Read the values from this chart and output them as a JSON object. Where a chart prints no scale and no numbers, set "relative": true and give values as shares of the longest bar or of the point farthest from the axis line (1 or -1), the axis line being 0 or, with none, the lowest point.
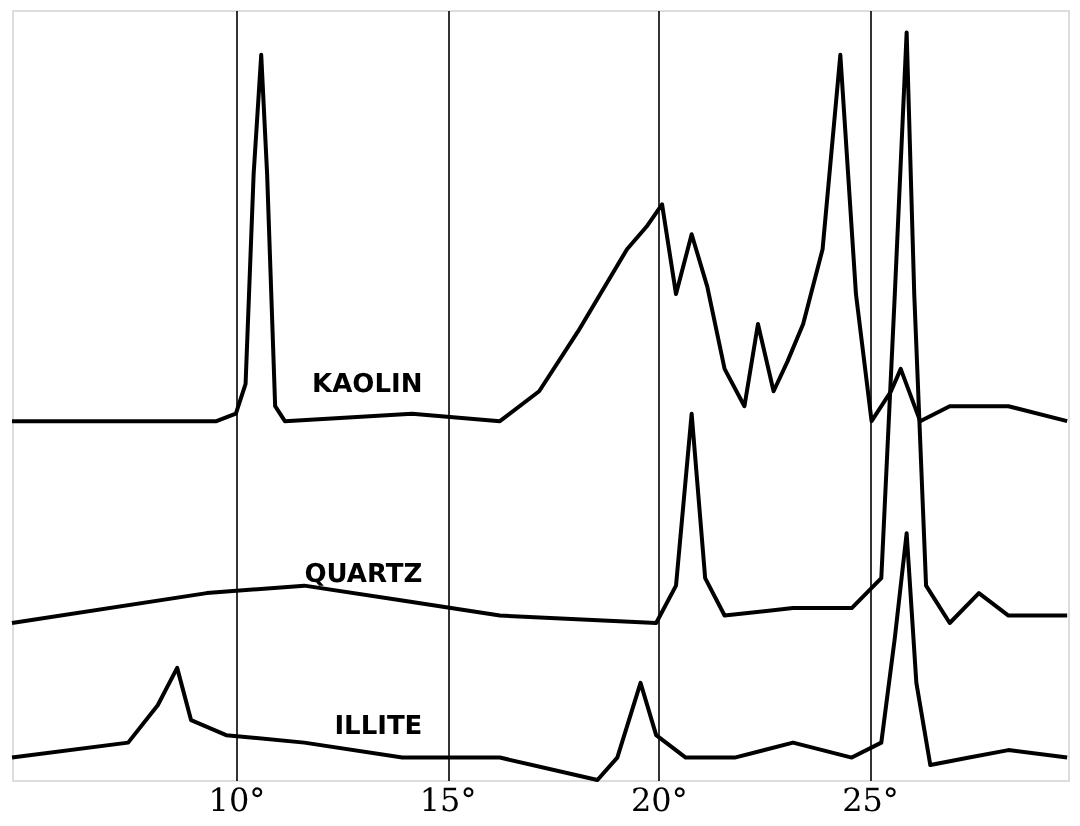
{
  "chart_data": {
    "type": "line",
    "relative": true,
    "xlim": [
      4.7,
      29.7
    ],
    "xticks": [
      {
        "value": 10,
        "label": "10°"
      },
      {
        "value": 15,
        "label": "15°"
      },
      {
        "value": 20,
        "label": "20°"
      },
      {
        "value": 25,
        "label": "25°"
      }
    ],
    "grid": "x",
    "legend": false,
    "marker": "none",
    "line_style": "solid",
    "series": [
      {
        "name": "KAOLIN",
        "color": "#000000",
        "x": [
          4.7,
          9.54,
          10.0,
          10.23,
          10.42,
          10.6,
          10.74,
          10.93,
          11.16,
          14.17,
          16.25,
          17.18,
          18.1,
          19.26,
          19.72,
          20.09,
          20.42,
          20.79,
          21.16,
          21.57,
          22.04,
          22.36,
          22.73,
          23.06,
          23.43,
          23.89,
          24.31,
          24.68,
          25.05,
          25.51,
          25.74,
          26.2,
          26.9,
          28.29,
          29.68
        ],
        "values": [
          0.48,
          0.48,
          0.49,
          0.53,
          0.81,
          0.97,
          0.81,
          0.5,
          0.48,
          0.49,
          0.48,
          0.52,
          0.6,
          0.71,
          0.74,
          0.77,
          0.65,
          0.73,
          0.66,
          0.55,
          0.5,
          0.61,
          0.52,
          0.56,
          0.61,
          0.71,
          0.97,
          0.65,
          0.48,
          0.52,
          0.55,
          0.48,
          0.5,
          0.5,
          0.48
        ]
      },
      {
        "name": "QUARTZ",
        "color": "#000000",
        "x": [
          4.7,
          9.31,
          11.62,
          13.94,
          16.25,
          19.95,
          20.42,
          20.79,
          21.11,
          21.57,
          23.19,
          24.58,
          25.28,
          25.6,
          25.88,
          26.06,
          26.34,
          26.9,
          27.59,
          28.29,
          29.68
        ],
        "values": [
          0.21,
          0.25,
          0.26,
          0.24,
          0.22,
          0.21,
          0.26,
          0.49,
          0.27,
          0.22,
          0.23,
          0.23,
          0.27,
          0.65,
          1,
          0.65,
          0.26,
          0.21,
          0.25,
          0.22,
          0.22
        ]
      },
      {
        "name": "ILLITE",
        "color": "#000000",
        "x": [
          4.7,
          7.45,
          8.15,
          8.61,
          8.94,
          9.77,
          11.62,
          13.94,
          16.25,
          18.56,
          19.03,
          19.58,
          19.95,
          20.65,
          21.81,
          23.19,
          24.58,
          25.28,
          25.6,
          25.88,
          26.11,
          26.44,
          27.36,
          28.29,
          29.68
        ],
        "values": [
          0.03,
          0.05,
          0.1,
          0.15,
          0.08,
          0.06,
          0.05,
          0.03,
          0.03,
          0,
          0.03,
          0.13,
          0.06,
          0.03,
          0.03,
          0.05,
          0.03,
          0.05,
          0.19,
          0.33,
          0.13,
          0.02,
          0.03,
          0.04,
          0.03
        ]
      }
    ]
  }
}
